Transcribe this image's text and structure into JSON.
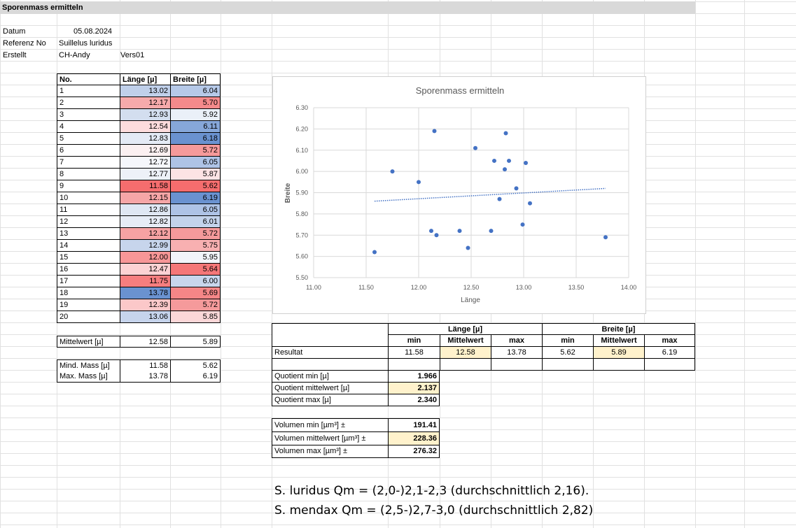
{
  "sheet": {
    "title": "Sporenmass ermitteln"
  },
  "meta": {
    "datum_label": "Datum",
    "datum_value": "05.08.2024",
    "referenz_label": "Referenz No",
    "referenz_value": "Suillelus luridus",
    "erstellt_label": "Erstellt",
    "erstellt_value": "CH-Andy",
    "version_value": "Vers01"
  },
  "measure_table": {
    "headers": [
      "No.",
      "Länge  [µ]",
      "Breite [µ]"
    ],
    "rows": [
      {
        "no": "1",
        "laenge": "13.02",
        "breite": "6.04",
        "lc": "#c0d0ea",
        "bc": "#b6c9e8"
      },
      {
        "no": "2",
        "laenge": "12.17",
        "breite": "5.70",
        "lc": "#f6aaab",
        "bc": "#f48a8b"
      },
      {
        "no": "3",
        "laenge": "12.93",
        "breite": "5.92",
        "lc": "#d3deef",
        "bc": "#eaf0f8"
      },
      {
        "no": "4",
        "laenge": "12.54",
        "breite": "6.11",
        "lc": "#fddcdd",
        "bc": "#86a7d9"
      },
      {
        "no": "5",
        "laenge": "12.83",
        "breite": "6.18",
        "lc": "#e4eaf5",
        "bc": "#6a92d0"
      },
      {
        "no": "6",
        "laenge": "12.69",
        "breite": "5.72",
        "lc": "#fbf0f1",
        "bc": "#f59a9b"
      },
      {
        "no": "7",
        "laenge": "12.72",
        "breite": "6.05",
        "lc": "#f5f7fb",
        "bc": "#aec3e6"
      },
      {
        "no": "8",
        "laenge": "12.77",
        "breite": "5.87",
        "lc": "#edf1f8",
        "bc": "#fde3e4"
      },
      {
        "no": "9",
        "laenge": "11.58",
        "breite": "5.62",
        "lc": "#f56d6e",
        "bc": "#f56d6e"
      },
      {
        "no": "10",
        "laenge": "12.15",
        "breite": "6.19",
        "lc": "#f6a6a7",
        "bc": "#6a92d0"
      },
      {
        "no": "11",
        "laenge": "12.86",
        "breite": "6.05",
        "lc": "#dfe7f3",
        "bc": "#aec3e6"
      },
      {
        "no": "12",
        "laenge": "12.82",
        "breite": "6.01",
        "lc": "#e6ecf6",
        "bc": "#c3d3eb"
      },
      {
        "no": "13",
        "laenge": "12.12",
        "breite": "5.72",
        "lc": "#f6a2a3",
        "bc": "#f59a9b"
      },
      {
        "no": "14",
        "laenge": "12.99",
        "breite": "5.75",
        "lc": "#c7d5ec",
        "bc": "#f8b0b1"
      },
      {
        "no": "15",
        "laenge": "12.00",
        "breite": "5.95",
        "lc": "#f79697",
        "bc": "#f2f5fa"
      },
      {
        "no": "16",
        "laenge": "12.47",
        "breite": "5.64",
        "lc": "#fcd2d3",
        "bc": "#f57778"
      },
      {
        "no": "17",
        "laenge": "11.75",
        "breite": "6.00",
        "lc": "#f67e7f",
        "bc": "#c8d6ec"
      },
      {
        "no": "18",
        "laenge": "13.78",
        "breite": "5.69",
        "lc": "#6a92d0",
        "bc": "#f58687"
      },
      {
        "no": "19",
        "laenge": "12.39",
        "breite": "5.72",
        "lc": "#fbc8c9",
        "bc": "#f59a9b"
      },
      {
        "no": "20",
        "laenge": "13.06",
        "breite": "5.85",
        "lc": "#c6d4ec",
        "bc": "#fbd7d8"
      }
    ],
    "mittelwert_label": "Mittelwert  [µ]",
    "mittelwert_laenge": "12.58",
    "mittelwert_breite": "5.89",
    "mind_label": "Mind. Mass  [µ]",
    "mind_laenge": "11.58",
    "mind_breite": "5.62",
    "max_label": "Max. Mass  [µ]",
    "max_laenge": "13.78",
    "max_breite": "6.19"
  },
  "result_table": {
    "laenge_header": "Länge  [µ]",
    "breite_header": "Breite [µ]",
    "sub_min": "min",
    "sub_mittel": "Mittelwert",
    "sub_max": "max",
    "resultat_label": "Resultat",
    "l_min": "11.58",
    "l_mittel": "12.58",
    "l_max": "13.78",
    "b_min": "5.62",
    "b_mittel": "5.89",
    "b_max": "6.19"
  },
  "quotient": {
    "min_label": "Quotient min  [µ]",
    "min_value": "1.966",
    "mittel_label": "Quotient mittelwert [µ]",
    "mittel_value": "2.137",
    "max_label": "Quotient max  [µ]",
    "max_value": "2.340"
  },
  "volumen": {
    "min_label": "Volumen min [µm³] ±",
    "min_value": "191.41",
    "mittel_label": "Volumen mittelwert [µm³] ±",
    "mittel_value": "228.36",
    "max_label": "Volumen max [µm³] ±",
    "max_value": "276.32"
  },
  "notes": {
    "line1": "S. luridus Qm = (2,0-)2,1-2,3 (durchschnittlich 2,16).",
    "line2": "S. mendax Qm = (2,5-)2,7-3,0 (durchschnittlich 2,82)"
  },
  "colors": {
    "highlight": "#fff2cc",
    "title_bar": "#d9d9d9",
    "point": "#4472c4",
    "trendline": "#4472c4"
  },
  "chart_data": {
    "type": "scatter",
    "title": "Sporenmass ermitteln",
    "xlabel": "Länge",
    "ylabel": "Breite",
    "xlim": [
      11.0,
      14.0
    ],
    "ylim": [
      5.5,
      6.3
    ],
    "x_ticks": [
      "11.00",
      "11.50",
      "12.00",
      "12.50",
      "13.00",
      "13.50",
      "14.00"
    ],
    "y_ticks": [
      "5.50",
      "5.60",
      "5.70",
      "5.80",
      "5.90",
      "6.00",
      "6.10",
      "6.20",
      "6.30"
    ],
    "grid": true,
    "legend": "none",
    "x": [
      13.02,
      12.17,
      12.93,
      12.54,
      12.83,
      12.69,
      12.72,
      12.77,
      11.58,
      12.15,
      12.86,
      12.82,
      12.12,
      12.99,
      12.0,
      12.47,
      11.75,
      13.78,
      12.39,
      13.06
    ],
    "y": [
      6.04,
      5.7,
      5.92,
      6.11,
      6.18,
      5.72,
      6.05,
      5.87,
      5.62,
      6.19,
      6.05,
      6.01,
      5.72,
      5.75,
      5.95,
      5.64,
      6.0,
      5.69,
      5.72,
      5.85
    ],
    "trendline": {
      "x": [
        11.58,
        13.78
      ],
      "y": [
        5.86,
        5.92
      ]
    }
  }
}
